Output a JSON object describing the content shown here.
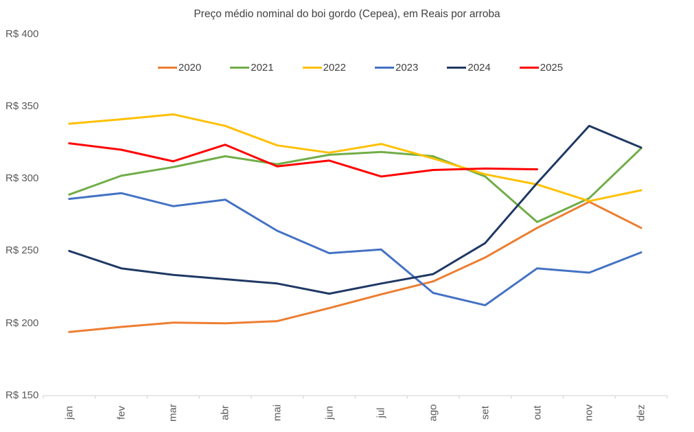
{
  "chart_data": {
    "type": "line",
    "title": "Preço médio nominal do boi gordo (Cepea), em Reais por arroba",
    "xlabel": "",
    "ylabel": "Reais por arroba",
    "x_categories": [
      "jan",
      "fev",
      "mar",
      "abr",
      "mai",
      "jun",
      "jul",
      "ago",
      "set",
      "out",
      "nov",
      "dez"
    ],
    "y_axis": {
      "tick_labels": [
        "R$ 400",
        "R$ 350",
        "R$ 300",
        "R$ 250",
        "R$ 200",
        "R$ 150"
      ],
      "tick_values": [
        400,
        350,
        300,
        250,
        200,
        150
      ],
      "min": 150,
      "max": 400
    },
    "grid": "off",
    "legend_position": "top",
    "series": [
      {
        "name": "2020",
        "color": "#ED7D31",
        "values": [
          194,
          197.5,
          200.5,
          200,
          201.5,
          210.5,
          220,
          229,
          245.5,
          266,
          284,
          266
        ]
      },
      {
        "name": "2021",
        "color": "#70AD47",
        "values": [
          289,
          302,
          308,
          315.5,
          310,
          316.5,
          318.5,
          315.5,
          301.5,
          270,
          286.5,
          321
        ]
      },
      {
        "name": "2022",
        "color": "#FFC000",
        "values": [
          338,
          341,
          344.5,
          336.5,
          323,
          318,
          324,
          314,
          303,
          296,
          284.5,
          292
        ]
      },
      {
        "name": "2023",
        "color": "#4472C4",
        "values": [
          286,
          290,
          281,
          285.5,
          264,
          248.5,
          251,
          221,
          212.5,
          238,
          235,
          249
        ]
      },
      {
        "name": "2024",
        "color": "#1F3864",
        "values": [
          250,
          238,
          233.5,
          230.5,
          227.5,
          220.5,
          227.5,
          234,
          255.5,
          297,
          336.5,
          321.5
        ]
      },
      {
        "name": "2025",
        "color": "#FF0000",
        "values": [
          324.5,
          320,
          312,
          323.5,
          308.5,
          312.5,
          301.5,
          306,
          307,
          306.5,
          null,
          null
        ]
      }
    ],
    "colors": {
      "axis_line": "#D9D9D9",
      "title_text": "#404040",
      "axis_text": "#595959",
      "background": "#FFFFFF"
    }
  }
}
